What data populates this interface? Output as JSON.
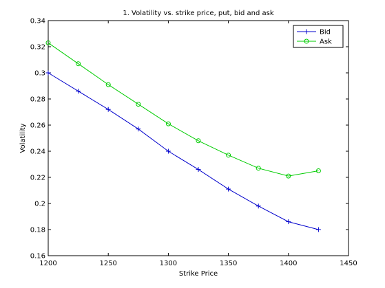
{
  "chart_data": {
    "type": "line",
    "title": "1. Volatility vs. strike price, put, bid and ask",
    "xlabel": "Strike Price",
    "ylabel": "Volatility",
    "xlim": [
      1200,
      1450
    ],
    "ylim": [
      0.16,
      0.34
    ],
    "xticks": [
      1200,
      1250,
      1300,
      1350,
      1400,
      1450
    ],
    "yticks": [
      0.16,
      0.18,
      0.2,
      0.22,
      0.24,
      0.26,
      0.28,
      0.3,
      0.32,
      0.34
    ],
    "grid": false,
    "legend_position": "top-right",
    "x": [
      1200,
      1225,
      1250,
      1275,
      1300,
      1325,
      1350,
      1375,
      1400,
      1425
    ],
    "series": [
      {
        "name": "Bid",
        "color": "#0000cc",
        "marker": "plus",
        "values": [
          0.3,
          0.286,
          0.272,
          0.257,
          0.24,
          0.226,
          0.211,
          0.198,
          0.186,
          0.18
        ]
      },
      {
        "name": "Ask",
        "color": "#00cc00",
        "marker": "circle",
        "values": [
          0.323,
          0.307,
          0.291,
          0.276,
          0.261,
          0.248,
          0.237,
          0.227,
          0.221,
          0.225
        ]
      }
    ]
  }
}
